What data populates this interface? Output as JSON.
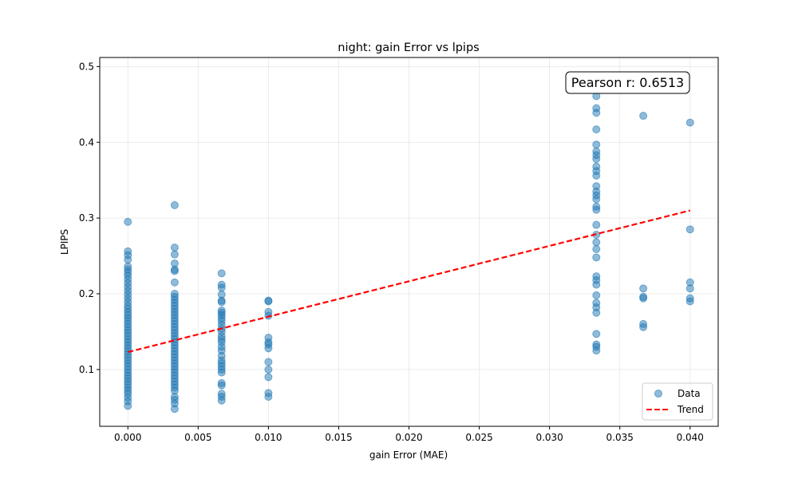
{
  "chart_data": {
    "type": "scatter",
    "title": "night: gain Error vs lpips",
    "xlabel": "gain Error (MAE)",
    "ylabel": "LPIPS",
    "xlim": [
      -0.002,
      0.042
    ],
    "ylim": [
      0.025,
      0.512
    ],
    "x_ticks": [
      0.0,
      0.005,
      0.01,
      0.015,
      0.02,
      0.025,
      0.03,
      0.035,
      0.04
    ],
    "x_tick_labels": [
      "0.000",
      "0.005",
      "0.010",
      "0.015",
      "0.020",
      "0.025",
      "0.030",
      "0.035",
      "0.040"
    ],
    "y_ticks": [
      0.1,
      0.2,
      0.3,
      0.4,
      0.5
    ],
    "y_tick_labels": [
      "0.1",
      "0.2",
      "0.3",
      "0.4",
      "0.5"
    ],
    "grid": true,
    "legend_position": "bottom-right",
    "annotation": "Pearson r: 0.6513",
    "series": [
      {
        "name": "Data",
        "color": "#1f77b4",
        "points": [
          [
            0.0,
            0.295
          ],
          [
            0.0,
            0.256
          ],
          [
            0.0,
            0.251
          ],
          [
            0.0,
            0.245
          ],
          [
            0.0,
            0.236
          ],
          [
            0.0,
            0.232
          ],
          [
            0.0,
            0.228
          ],
          [
            0.0,
            0.224
          ],
          [
            0.0,
            0.219
          ],
          [
            0.0,
            0.214
          ],
          [
            0.0,
            0.209
          ],
          [
            0.0,
            0.204
          ],
          [
            0.0,
            0.199
          ],
          [
            0.0,
            0.194
          ],
          [
            0.0,
            0.189
          ],
          [
            0.0,
            0.184
          ],
          [
            0.0,
            0.18
          ],
          [
            0.0,
            0.176
          ],
          [
            0.0,
            0.172
          ],
          [
            0.0,
            0.168
          ],
          [
            0.0,
            0.164
          ],
          [
            0.0,
            0.16
          ],
          [
            0.0,
            0.156
          ],
          [
            0.0,
            0.152
          ],
          [
            0.0,
            0.148
          ],
          [
            0.0,
            0.144
          ],
          [
            0.0,
            0.14
          ],
          [
            0.0,
            0.136
          ],
          [
            0.0,
            0.132
          ],
          [
            0.0,
            0.128
          ],
          [
            0.0,
            0.124
          ],
          [
            0.0,
            0.12
          ],
          [
            0.0,
            0.116
          ],
          [
            0.0,
            0.112
          ],
          [
            0.0,
            0.108
          ],
          [
            0.0,
            0.104
          ],
          [
            0.0,
            0.1
          ],
          [
            0.0,
            0.096
          ],
          [
            0.0,
            0.092
          ],
          [
            0.0,
            0.088
          ],
          [
            0.0,
            0.084
          ],
          [
            0.0,
            0.08
          ],
          [
            0.0,
            0.076
          ],
          [
            0.0,
            0.072
          ],
          [
            0.0,
            0.068
          ],
          [
            0.0,
            0.063
          ],
          [
            0.0,
            0.058
          ],
          [
            0.0,
            0.052
          ],
          [
            0.00333,
            0.317
          ],
          [
            0.00333,
            0.261
          ],
          [
            0.00333,
            0.252
          ],
          [
            0.00333,
            0.24
          ],
          [
            0.00333,
            0.232
          ],
          [
            0.00333,
            0.23
          ],
          [
            0.00333,
            0.215
          ],
          [
            0.00333,
            0.2
          ],
          [
            0.00333,
            0.196
          ],
          [
            0.00333,
            0.192
          ],
          [
            0.00333,
            0.188
          ],
          [
            0.00333,
            0.184
          ],
          [
            0.00333,
            0.18
          ],
          [
            0.00333,
            0.176
          ],
          [
            0.00333,
            0.172
          ],
          [
            0.00333,
            0.168
          ],
          [
            0.00333,
            0.164
          ],
          [
            0.00333,
            0.16
          ],
          [
            0.00333,
            0.156
          ],
          [
            0.00333,
            0.152
          ],
          [
            0.00333,
            0.148
          ],
          [
            0.00333,
            0.144
          ],
          [
            0.00333,
            0.14
          ],
          [
            0.00333,
            0.136
          ],
          [
            0.00333,
            0.132
          ],
          [
            0.00333,
            0.128
          ],
          [
            0.00333,
            0.124
          ],
          [
            0.00333,
            0.12
          ],
          [
            0.00333,
            0.116
          ],
          [
            0.00333,
            0.112
          ],
          [
            0.00333,
            0.108
          ],
          [
            0.00333,
            0.104
          ],
          [
            0.00333,
            0.1
          ],
          [
            0.00333,
            0.096
          ],
          [
            0.00333,
            0.092
          ],
          [
            0.00333,
            0.088
          ],
          [
            0.00333,
            0.084
          ],
          [
            0.00333,
            0.08
          ],
          [
            0.00333,
            0.076
          ],
          [
            0.00333,
            0.072
          ],
          [
            0.00333,
            0.064
          ],
          [
            0.00333,
            0.06
          ],
          [
            0.00333,
            0.055
          ],
          [
            0.00333,
            0.048
          ],
          [
            0.00667,
            0.227
          ],
          [
            0.00667,
            0.212
          ],
          [
            0.00667,
            0.208
          ],
          [
            0.00667,
            0.199
          ],
          [
            0.00667,
            0.191
          ],
          [
            0.00667,
            0.189
          ],
          [
            0.00667,
            0.178
          ],
          [
            0.00667,
            0.175
          ],
          [
            0.00667,
            0.172
          ],
          [
            0.00667,
            0.168
          ],
          [
            0.00667,
            0.164
          ],
          [
            0.00667,
            0.159
          ],
          [
            0.00667,
            0.154
          ],
          [
            0.00667,
            0.15
          ],
          [
            0.00667,
            0.144
          ],
          [
            0.00667,
            0.14
          ],
          [
            0.00667,
            0.136
          ],
          [
            0.00667,
            0.13
          ],
          [
            0.00667,
            0.125
          ],
          [
            0.00667,
            0.118
          ],
          [
            0.00667,
            0.112
          ],
          [
            0.00667,
            0.108
          ],
          [
            0.00667,
            0.104
          ],
          [
            0.00667,
            0.1
          ],
          [
            0.00667,
            0.096
          ],
          [
            0.00667,
            0.082
          ],
          [
            0.00667,
            0.079
          ],
          [
            0.00667,
            0.068
          ],
          [
            0.00667,
            0.064
          ],
          [
            0.00667,
            0.059
          ],
          [
            0.01,
            0.191
          ],
          [
            0.01,
            0.19
          ],
          [
            0.01,
            0.176
          ],
          [
            0.01,
            0.171
          ],
          [
            0.01,
            0.142
          ],
          [
            0.01,
            0.136
          ],
          [
            0.01,
            0.133
          ],
          [
            0.01,
            0.128
          ],
          [
            0.01,
            0.11
          ],
          [
            0.01,
            0.1
          ],
          [
            0.01,
            0.09
          ],
          [
            0.01,
            0.069
          ],
          [
            0.01,
            0.064
          ],
          [
            0.03333,
            0.486
          ],
          [
            0.03333,
            0.461
          ],
          [
            0.03333,
            0.445
          ],
          [
            0.03333,
            0.439
          ],
          [
            0.03333,
            0.417
          ],
          [
            0.03333,
            0.397
          ],
          [
            0.03333,
            0.388
          ],
          [
            0.03333,
            0.383
          ],
          [
            0.03333,
            0.378
          ],
          [
            0.03333,
            0.368
          ],
          [
            0.03333,
            0.362
          ],
          [
            0.03333,
            0.356
          ],
          [
            0.03333,
            0.342
          ],
          [
            0.03333,
            0.335
          ],
          [
            0.03333,
            0.33
          ],
          [
            0.03333,
            0.325
          ],
          [
            0.03333,
            0.315
          ],
          [
            0.03333,
            0.311
          ],
          [
            0.03333,
            0.291
          ],
          [
            0.03333,
            0.278
          ],
          [
            0.03333,
            0.268
          ],
          [
            0.03333,
            0.259
          ],
          [
            0.03333,
            0.248
          ],
          [
            0.03333,
            0.223
          ],
          [
            0.03333,
            0.218
          ],
          [
            0.03333,
            0.212
          ],
          [
            0.03333,
            0.198
          ],
          [
            0.03333,
            0.188
          ],
          [
            0.03333,
            0.182
          ],
          [
            0.03333,
            0.175
          ],
          [
            0.03333,
            0.147
          ],
          [
            0.03333,
            0.133
          ],
          [
            0.03333,
            0.13
          ],
          [
            0.03333,
            0.125
          ],
          [
            0.03667,
            0.486
          ],
          [
            0.03667,
            0.435
          ],
          [
            0.03667,
            0.207
          ],
          [
            0.03667,
            0.196
          ],
          [
            0.03667,
            0.194
          ],
          [
            0.03667,
            0.16
          ],
          [
            0.03667,
            0.156
          ],
          [
            0.04,
            0.426
          ],
          [
            0.04,
            0.285
          ],
          [
            0.04,
            0.215
          ],
          [
            0.04,
            0.207
          ],
          [
            0.04,
            0.194
          ],
          [
            0.04,
            0.19
          ]
        ]
      },
      {
        "name": "Trend",
        "color": "#ff0000",
        "style": "dashed",
        "points": [
          [
            0.0,
            0.123
          ],
          [
            0.04,
            0.31
          ]
        ]
      }
    ]
  }
}
